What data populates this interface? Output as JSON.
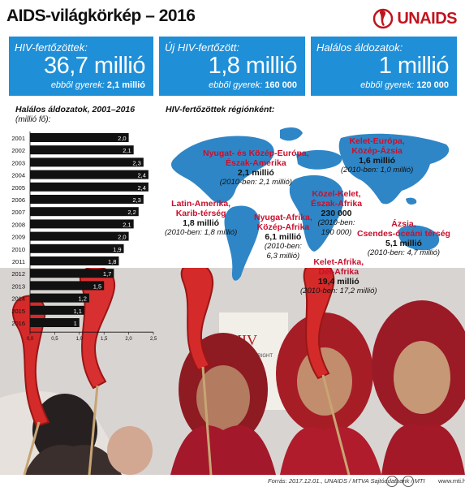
{
  "title": "AIDS-világkörkép – 2016",
  "logo": {
    "text": "UNAIDS"
  },
  "kpis": [
    {
      "label": "HIV-fertőzöttek:",
      "value": "36,7 millió",
      "sub_label": "ebből gyerek:",
      "sub_value": "2,1 millió"
    },
    {
      "label": "Új HIV-fertőzött:",
      "value": "1,8 millió",
      "sub_label": "ebből gyerek:",
      "sub_value": "160 000"
    },
    {
      "label": "Halálos áldozatok:",
      "value": "1 millió",
      "sub_label": "ebből gyerek:",
      "sub_value": "120 000"
    }
  ],
  "map_title": "HIV-fertőzöttek régiónként:",
  "regions": [
    {
      "name": [
        "Nyugat- és Közép-Európa,",
        "Észak-Amerika"
      ],
      "value": "2,1 millió",
      "prev": "(2010-ben: 2,1 millió)"
    },
    {
      "name": [
        "Kelet-Európa,",
        "Közép-Ázsia"
      ],
      "value": "1,6 millió",
      "prev": "(2010-ben: 1,0 millió)"
    },
    {
      "name": [
        "Latin-Amerika,",
        "Karib-térség"
      ],
      "value": "1,8 millió",
      "prev": "(2010-ben: 1,8 millió)"
    },
    {
      "name": [
        "Közel-Kelet,",
        "Észak-Afrika"
      ],
      "value": "230 000",
      "prev": "(2010-ben:",
      "prev2": "190 000)"
    },
    {
      "name": [
        "Nyugat-Afrika,",
        "Közép-Afrika"
      ],
      "value": "6,1 millió",
      "prev": "(2010-ben:",
      "prev2": "6,3 millió)"
    },
    {
      "name": [
        "Ázsia,",
        "Csendes-óceáni térség"
      ],
      "value": "5,1 millió",
      "prev": "(2010-ben: 4,7 millió)"
    },
    {
      "name": [
        "Kelet-Afrika,",
        "Dél-Afrika"
      ],
      "value": "19,4 millió",
      "prev": "(2010-ben: 17,2 millió)"
    }
  ],
  "chart_data": {
    "type": "bar",
    "orientation": "horizontal",
    "title": "Halálos áldozatok, 2001–2016",
    "unit": "(millió fő):",
    "categories": [
      "2001",
      "2002",
      "2003",
      "2004",
      "2005",
      "2006",
      "2007",
      "2008",
      "2009",
      "2010",
      "2011",
      "2012",
      "2013",
      "2014",
      "2015",
      "2016"
    ],
    "values": [
      2.0,
      2.1,
      2.3,
      2.4,
      2.4,
      2.3,
      2.2,
      2.1,
      2.0,
      1.9,
      1.8,
      1.7,
      1.5,
      1.2,
      1.1,
      1.0
    ],
    "value_labels": [
      "2,0",
      "2,1",
      "2,3",
      "2,4",
      "2,4",
      "2,3",
      "2,2",
      "2,1",
      "2,0",
      "1,9",
      "1,8",
      "1,7",
      "1,5",
      "1,2",
      "1,1",
      "1"
    ],
    "xticks": [
      "0,0",
      "0,5",
      "1,0",
      "1,5",
      "2,0",
      "2,5"
    ],
    "xlim": [
      0,
      2.5
    ],
    "bar_color": "#111111",
    "label_color": "#ffffff",
    "grid": false
  },
  "colors": {
    "accent": "#1f8fd8",
    "red": "#c8102e",
    "map": "#2f86c6"
  },
  "photo_sign": [
    "HIV",
    "THE HUMAN RIGHT"
  ],
  "footer": {
    "source": "Forrás: 2017.12.01., UNAIDS / MTVA Sajtóadatbank / MTI",
    "site": "www.mti.hu"
  }
}
